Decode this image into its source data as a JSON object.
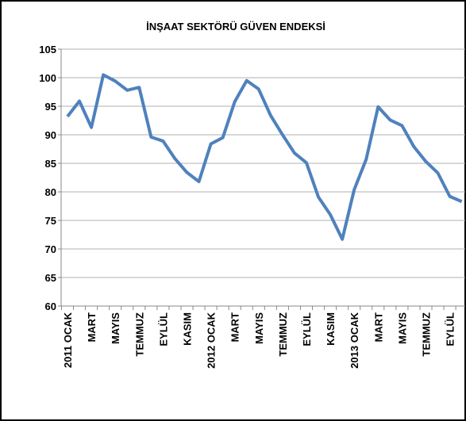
{
  "chart_data": {
    "type": "line",
    "title": "İNŞAAT SEKTÖRÜ GÜVEN ENDEKSİ",
    "categories": [
      "2011 OCAK",
      null,
      "MART",
      null,
      "MAYIS",
      null,
      "TEMMUZ",
      null,
      "EYLÜL",
      null,
      "KASIM",
      null,
      "2012 OCAK",
      null,
      "MART",
      null,
      "MAYIS",
      null,
      "TEMMUZ",
      null,
      "EYLÜL",
      null,
      "KASIM",
      null,
      "2013 OCAK",
      null,
      "MART",
      null,
      "MAYIS",
      null,
      "TEMMUZ",
      null,
      "EYLÜL",
      null
    ],
    "series": [
      {
        "color": "#4f81bd",
        "values": [
          93.2,
          95.9,
          91.3,
          100.5,
          99.4,
          97.8,
          98.3,
          89.6,
          88.9,
          85.8,
          83.4,
          81.8,
          88.4,
          89.5,
          95.8,
          99.5,
          98.0,
          93.4,
          90.0,
          86.8,
          85.1,
          79.1,
          76.0,
          71.7,
          80.4,
          85.7,
          94.9,
          92.6,
          91.6,
          87.9,
          85.3,
          83.3,
          79.2,
          78.3
        ]
      }
    ],
    "ylim": [
      60,
      105
    ],
    "yticks": [
      60,
      65,
      70,
      75,
      80,
      85,
      90,
      95,
      100,
      105
    ],
    "grid": true
  }
}
